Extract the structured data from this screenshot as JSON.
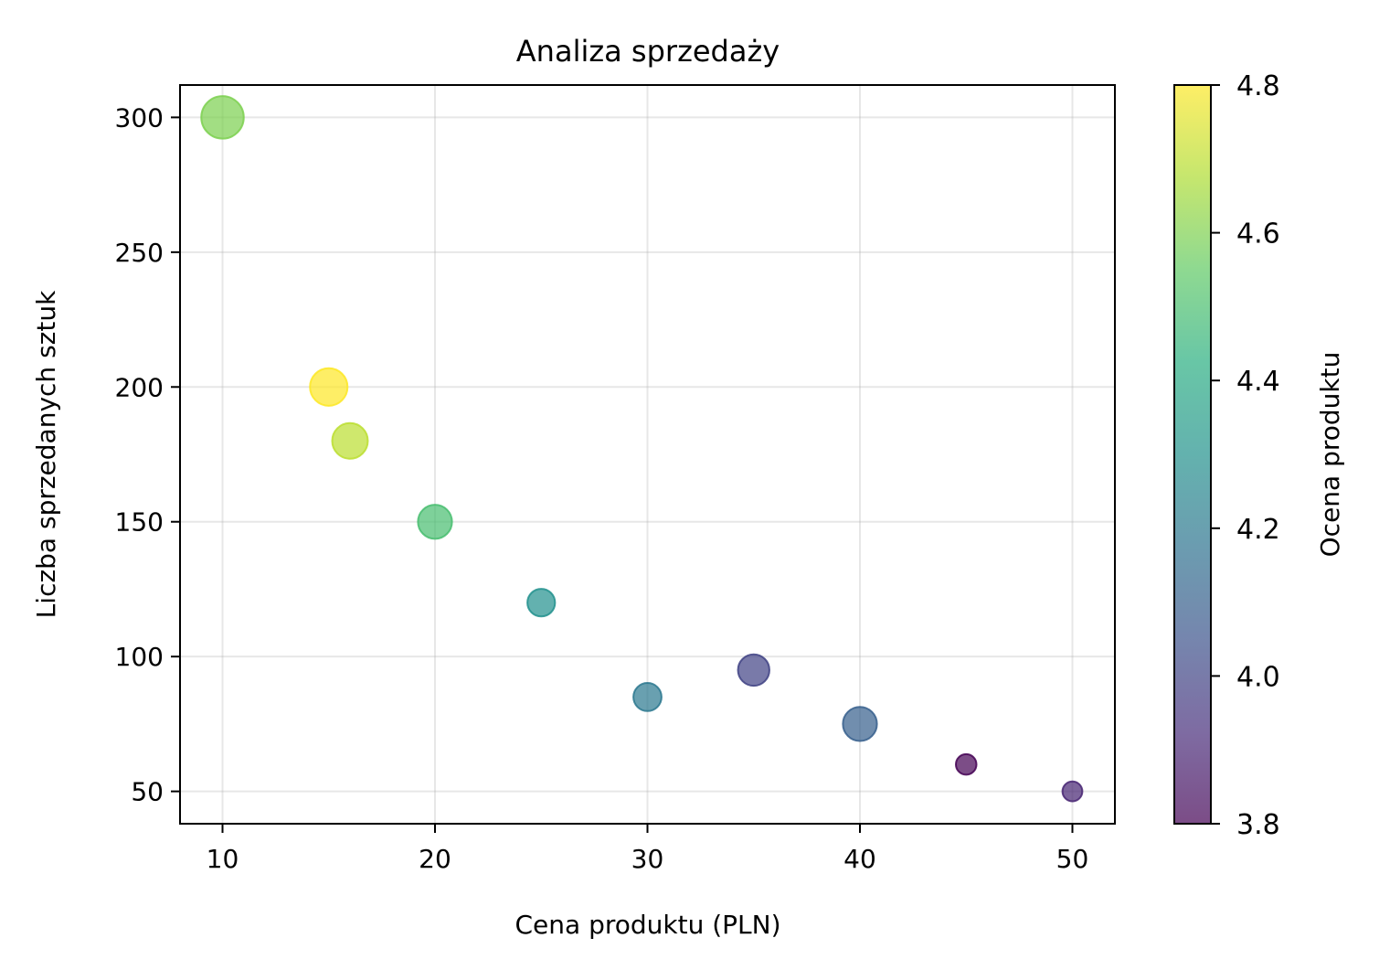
{
  "chart_data": {
    "type": "scatter",
    "title": "Analiza sprzedaży",
    "xlabel": "Cena produktu (PLN)",
    "ylabel": "Liczba sprzedanych sztuk",
    "xlim": [
      8,
      52
    ],
    "ylim": [
      38,
      312
    ],
    "xticks": [
      10,
      20,
      30,
      40,
      50
    ],
    "yticks": [
      50,
      100,
      150,
      200,
      250,
      300
    ],
    "grid": true,
    "colormap": "viridis",
    "marker_alpha": 0.7,
    "points": [
      {
        "x": 10,
        "y": 300,
        "rating": 4.6,
        "size": 3.2
      },
      {
        "x": 15,
        "y": 200,
        "rating": 4.8,
        "size": 2.5
      },
      {
        "x": 16,
        "y": 180,
        "rating": 4.7,
        "size": 2.25
      },
      {
        "x": 20,
        "y": 150,
        "rating": 4.5,
        "size": 2.05
      },
      {
        "x": 25,
        "y": 120,
        "rating": 4.3,
        "size": 1.35
      },
      {
        "x": 30,
        "y": 85,
        "rating": 4.2,
        "size": 1.4
      },
      {
        "x": 35,
        "y": 95,
        "rating": 4.0,
        "size": 1.75
      },
      {
        "x": 40,
        "y": 75,
        "rating": 4.1,
        "size": 2.05
      },
      {
        "x": 45,
        "y": 60,
        "rating": 3.8,
        "size": 0.75
      },
      {
        "x": 50,
        "y": 50,
        "rating": 3.9,
        "size": 0.7
      }
    ],
    "colorbar": {
      "label": "Ocena produktu",
      "range": [
        3.8,
        4.8
      ],
      "ticks": [
        "3.8",
        "4.0",
        "4.2",
        "4.4",
        "4.6",
        "4.8"
      ]
    }
  }
}
